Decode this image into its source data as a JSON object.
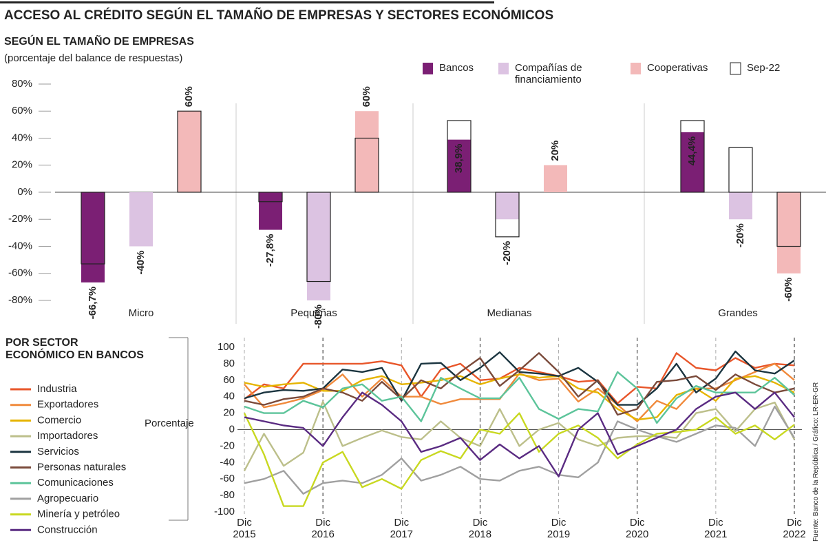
{
  "title": "ACCESO AL CRÉDITO SEGÚN EL TAMAÑO DE EMPRESAS Y SECTORES ECONÓMICOS",
  "source": "Fuente: Banco de la República / Gráfico: LR-ER-GR",
  "chart_data": [
    {
      "type": "bar",
      "title": "SEGÚN EL TAMAÑO DE EMPRESAS",
      "subtitle": "(porcentaje del balance de respuestas)",
      "categories": [
        "Micro",
        "Pequeñas",
        "Medianas",
        "Grandes"
      ],
      "comparison_name": "Sep-22",
      "series": [
        {
          "name": "Bancos",
          "color": "#7b1f74",
          "values": [
            -66.7,
            -27.8,
            38.9,
            44.4
          ],
          "value_labels": [
            "-66,7%",
            "-27,8%",
            "38,9%",
            "44,4%"
          ],
          "comparison_values": [
            -53,
            -7,
            53,
            53
          ]
        },
        {
          "name": "Compañías de financiamiento",
          "color": "#dcc3e2",
          "values": [
            -40,
            -80,
            -20,
            -20
          ],
          "value_labels": [
            "-40%",
            "-80%",
            "-20%",
            "-20%"
          ],
          "comparison_values": [
            null,
            -66,
            -33,
            33
          ]
        },
        {
          "name": "Cooperativas",
          "color": "#f3b9b9",
          "values": [
            60,
            60,
            20,
            -60
          ],
          "value_labels": [
            "60%",
            "60%",
            "20%",
            "-60%"
          ],
          "comparison_values": [
            60,
            40,
            null,
            -40
          ]
        }
      ],
      "ylim": [
        -80,
        80
      ],
      "yticks": [
        {
          "value": 80,
          "label": "80%"
        },
        {
          "value": 60,
          "label": "60%"
        },
        {
          "value": 40,
          "label": "40%"
        },
        {
          "value": 20,
          "label": "20%"
        },
        {
          "value": 0,
          "label": "0%"
        },
        {
          "value": -20,
          "label": "-20%"
        },
        {
          "value": -40,
          "label": "-40%"
        },
        {
          "value": -60,
          "label": "-60%"
        },
        {
          "value": -80,
          "label": "-80%"
        }
      ]
    },
    {
      "type": "line",
      "title": "POR SECTOR ECONÓMICO EN BANCOS",
      "y_label": "Porcentaje",
      "x": [
        "Dic 2015",
        null,
        null,
        null,
        "Dic 2016",
        null,
        null,
        null,
        "Dic 2017",
        null,
        null,
        null,
        "Dic 2018",
        null,
        null,
        null,
        "Dic 2019",
        null,
        null,
        null,
        "Dic 2020",
        null,
        null,
        null,
        "Dic 2021",
        null,
        null,
        null,
        "Dic 2022"
      ],
      "ylim": [
        -100,
        100
      ],
      "yticks": [
        100,
        80,
        60,
        40,
        20,
        0,
        -20,
        -40,
        -60,
        -80,
        -100
      ],
      "zero_line": true,
      "vertical_dividers": true,
      "series": [
        {
          "name": "Industria",
          "color": "#e8562a",
          "values": [
            37,
            55,
            50,
            80,
            80,
            80,
            80,
            83,
            78,
            40,
            73,
            80,
            60,
            62,
            75,
            70,
            65,
            58,
            60,
            32,
            52,
            50,
            93,
            75,
            72,
            87,
            75,
            80,
            78
          ]
        },
        {
          "name": "Exportadores",
          "color": "#f08a3c",
          "values": [
            55,
            27,
            32,
            38,
            48,
            67,
            40,
            62,
            40,
            40,
            31,
            37,
            37,
            37,
            68,
            60,
            62,
            34,
            50,
            30,
            10,
            35,
            25,
            50,
            50,
            60,
            70,
            80,
            60
          ]
        },
        {
          "name": "Comercio",
          "color": "#e6b400",
          "values": [
            57,
            52,
            55,
            57,
            47,
            47,
            60,
            65,
            55,
            57,
            60,
            65,
            55,
            62,
            67,
            63,
            65,
            50,
            45,
            25,
            12,
            15,
            42,
            50,
            35,
            62,
            65,
            57,
            45
          ]
        },
        {
          "name": "Importadores",
          "color": "#bcbf8a",
          "values": [
            -50,
            -5,
            -44,
            -28,
            34,
            -20,
            -10,
            -1,
            -9,
            -12,
            10,
            -10,
            -20,
            25,
            -20,
            0,
            8,
            -12,
            -20,
            -10,
            -8,
            -8,
            -10,
            20,
            25,
            -2,
            25,
            33,
            -12
          ]
        },
        {
          "name": "Servicios",
          "color": "#1b3540",
          "values": [
            38,
            45,
            48,
            47,
            50,
            73,
            70,
            75,
            35,
            80,
            81,
            60,
            75,
            94,
            70,
            68,
            65,
            75,
            58,
            30,
            30,
            50,
            80,
            45,
            62,
            95,
            72,
            68,
            84
          ]
        },
        {
          "name": "Personas naturales",
          "color": "#7a4a3a",
          "values": [
            35,
            30,
            37,
            40,
            50,
            45,
            35,
            58,
            37,
            60,
            50,
            70,
            87,
            53,
            72,
            93,
            70,
            40,
            60,
            18,
            25,
            58,
            60,
            65,
            48,
            67,
            55,
            45,
            50
          ]
        },
        {
          "name": "Comunicaciones",
          "color": "#5cc49a",
          "values": [
            28,
            20,
            20,
            35,
            27,
            50,
            55,
            35,
            40,
            10,
            63,
            50,
            38,
            38,
            63,
            25,
            13,
            25,
            22,
            70,
            50,
            8,
            38,
            53,
            45,
            45,
            45,
            63,
            42
          ]
        },
        {
          "name": "Agropecuario",
          "color": "#a0a0a0",
          "values": [
            -65,
            -60,
            -50,
            -78,
            -65,
            -62,
            -65,
            -55,
            -35,
            -62,
            -55,
            -45,
            -60,
            -62,
            -50,
            -45,
            -55,
            -58,
            -40,
            10,
            0,
            -8,
            -15,
            -5,
            5,
            2,
            -20,
            28,
            -10
          ]
        },
        {
          "name": "Minería y petróleo",
          "color": "#c8d820",
          "values": [
            20,
            -30,
            -93,
            -93,
            -40,
            -27,
            -70,
            -60,
            -72,
            -37,
            -26,
            -35,
            0,
            -5,
            20,
            -27,
            -5,
            5,
            -10,
            -35,
            -18,
            -5,
            -3,
            0,
            15,
            -5,
            5,
            -12,
            6
          ]
        },
        {
          "name": "Construcción",
          "color": "#5a2b82",
          "values": [
            15,
            10,
            5,
            2,
            -20,
            15,
            45,
            30,
            10,
            -27,
            -20,
            -10,
            -37,
            -18,
            -35,
            -20,
            -57,
            0,
            20,
            -30,
            -20,
            -10,
            0,
            25,
            40,
            45,
            25,
            45,
            15
          ]
        }
      ]
    }
  ]
}
